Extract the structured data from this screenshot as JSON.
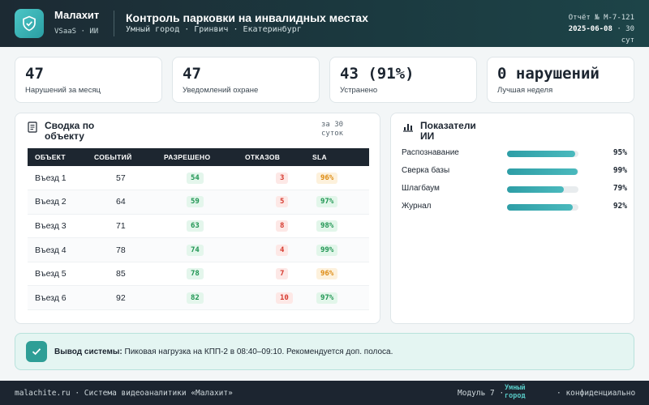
{
  "header": {
    "brand": "Малахит",
    "brand_sub": "VSaaS · ИИ",
    "title": "Контроль парковки на инвалидных местах",
    "subtitle": "Умный город · Гринвич · Екатеринбург",
    "report": "Отчёт № M-7-121",
    "date": "2025-06-08",
    "period": "· 30 сут"
  },
  "stats": [
    {
      "value": "47",
      "label": "Нарушений за месяц"
    },
    {
      "value": "47",
      "label": "Уведомлений охране"
    },
    {
      "value": "43 (91%)",
      "label": "Устранено"
    },
    {
      "value": "0 нарушений",
      "label": "Лучшая неделя"
    }
  ],
  "summary": {
    "title": "Сводка по объекту",
    "period": "за 30 суток",
    "columns": [
      "ОБЪЕКТ",
      "СОБЫТИЙ",
      "РАЗРЕШЕНО",
      "ОТКАЗОВ",
      "SLA"
    ],
    "rows": [
      {
        "object": "Въезд 1",
        "events": "57",
        "allowed": "54",
        "denied": "3",
        "sla": "96%",
        "sla_tone": "o"
      },
      {
        "object": "Въезд 2",
        "events": "64",
        "allowed": "59",
        "denied": "5",
        "sla": "97%",
        "sla_tone": "s"
      },
      {
        "object": "Въезд 3",
        "events": "71",
        "allowed": "63",
        "denied": "8",
        "sla": "98%",
        "sla_tone": "s"
      },
      {
        "object": "Въезд 4",
        "events": "78",
        "allowed": "74",
        "denied": "4",
        "sla": "99%",
        "sla_tone": "s"
      },
      {
        "object": "Въезд 5",
        "events": "85",
        "allowed": "78",
        "denied": "7",
        "sla": "96%",
        "sla_tone": "o"
      },
      {
        "object": "Въезд 6",
        "events": "92",
        "allowed": "82",
        "denied": "10",
        "sla": "97%",
        "sla_tone": "s"
      }
    ]
  },
  "ai": {
    "title": "Показатели ИИ",
    "metrics": [
      {
        "label": "Распознавание",
        "percent": 95,
        "text": "95%"
      },
      {
        "label": "Сверка базы",
        "percent": 99,
        "text": "99%"
      },
      {
        "label": "Шлагбаум",
        "percent": 79,
        "text": "79%"
      },
      {
        "label": "Журнал",
        "percent": 92,
        "text": "92%"
      }
    ]
  },
  "alert": {
    "label": "Вывод системы:",
    "text": "Пиковая нагрузка на КПП-2 в 08:40–09:10. Рекомендуется доп. полоса."
  },
  "footer": {
    "left": "malachite.ru · Система видеоаналитики «Малахит»",
    "module": "Модуль 7 ·",
    "city": "Умный город",
    "conf": "· конфиденциально"
  },
  "colors": {
    "accent": "#2e9ea6",
    "header": "#1c2a33",
    "ok": "#1f9552",
    "bad": "#d63a2f",
    "warn": "#dd8a10"
  }
}
